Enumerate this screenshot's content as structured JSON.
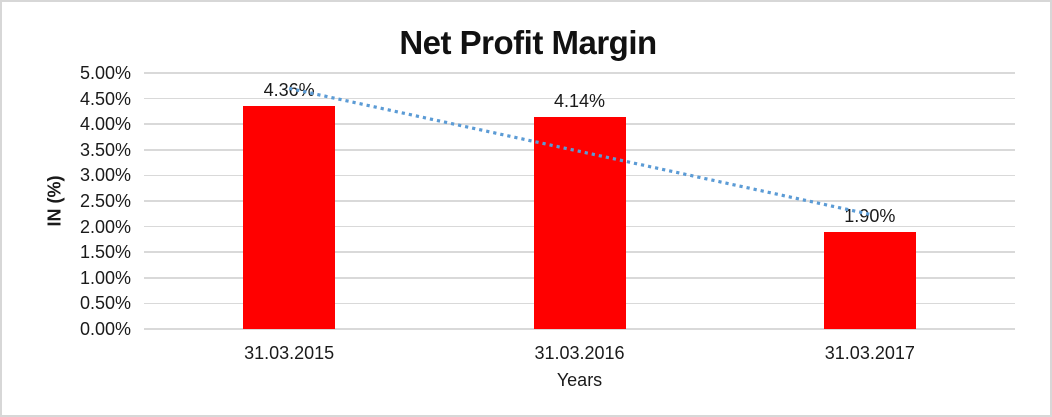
{
  "chart_data": {
    "type": "bar",
    "title": "Net Profit Margin",
    "xlabel": "Years",
    "ylabel": "IN (%)",
    "categories": [
      "31.03.2015",
      "31.03.2016",
      "31.03.2017"
    ],
    "values": [
      4.36,
      4.14,
      1.9
    ],
    "data_labels": [
      "4.36%",
      "4.14%",
      "1.90%"
    ],
    "ylim": [
      0,
      5
    ],
    "ytick_step": 0.5,
    "ytick_labels": [
      "0.00%",
      "0.50%",
      "1.00%",
      "1.50%",
      "2.00%",
      "2.50%",
      "3.00%",
      "3.50%",
      "4.00%",
      "4.50%",
      "5.00%"
    ],
    "grid": true,
    "legend": "none",
    "bar_color": "#ff0000",
    "trendline": {
      "type": "linear",
      "style": "dotted",
      "color": "#5b9bd5",
      "start_value": 4.7,
      "end_value": 2.24
    }
  }
}
